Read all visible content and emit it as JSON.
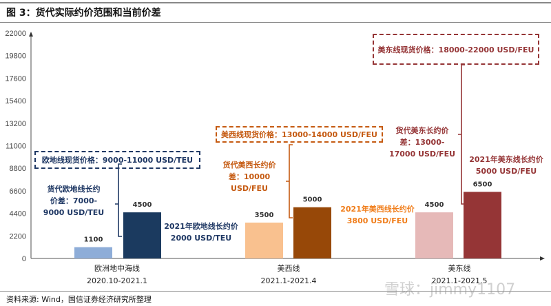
{
  "title": "图 3：货代实际约价范围和当前价差",
  "source": "资料来源: Wind，国信证券经济研究所整理",
  "watermark": "雪球：jimmy1107",
  "chart_data": {
    "type": "bar",
    "ylim": [
      0,
      22000
    ],
    "yticks": [
      0,
      2200,
      4400,
      6600,
      8800,
      11000,
      13200,
      15400,
      17600,
      19800,
      22000
    ],
    "categories": [
      {
        "name": "欧洲地中海线",
        "period": "2020.10-2021.1"
      },
      {
        "name": "美西线",
        "period": "2021.1-2021.4"
      },
      {
        "name": "美东线",
        "period": "2021.1-2021.5"
      }
    ],
    "bars": [
      {
        "category": 0,
        "value": 1100,
        "label": "1100",
        "color": "#8eadd8"
      },
      {
        "category": 0,
        "value": 4500,
        "label": "4500",
        "color": "#1b3a5f"
      },
      {
        "category": 1,
        "value": 3500,
        "label": "3500",
        "color": "#f9c18f"
      },
      {
        "category": 1,
        "value": 5000,
        "label": "5000",
        "color": "#974808"
      },
      {
        "category": 2,
        "value": 4500,
        "label": "4500",
        "color": "#e6b9b8"
      },
      {
        "category": 2,
        "value": 6500,
        "label": "6500",
        "color": "#953536"
      }
    ],
    "annotations": {
      "eu_spot": "欧地线现货价格：9000-11000 USD/TEU",
      "eu_spread": [
        "货代欧地线长约",
        "价差：7000-",
        "9000 USD/TEU"
      ],
      "eu_contract": [
        "2021年欧地线长约价",
        "2000 USD/TEU"
      ],
      "usw_spot": "美西线现货价格：13000-14000 USD/FEU",
      "usw_spread": [
        "货代美西长约价",
        "差：10000",
        "USD/FEU"
      ],
      "usw_contract": [
        "2021年美西线长约价",
        "3800 USD/FEU"
      ],
      "use_spot": "美东线现货价格：18000-22000 USD/FEU",
      "use_spread": [
        "货代美东长约价",
        "差：13000-",
        "17000 USD/FEU"
      ],
      "use_contract": [
        "2021年美东线长约价",
        "5000 USD/FEU"
      ]
    },
    "colors": {
      "navy": "#1f3864",
      "brown": "#c55a11",
      "orange": "#f07d1a",
      "darkred": "#953536"
    }
  }
}
